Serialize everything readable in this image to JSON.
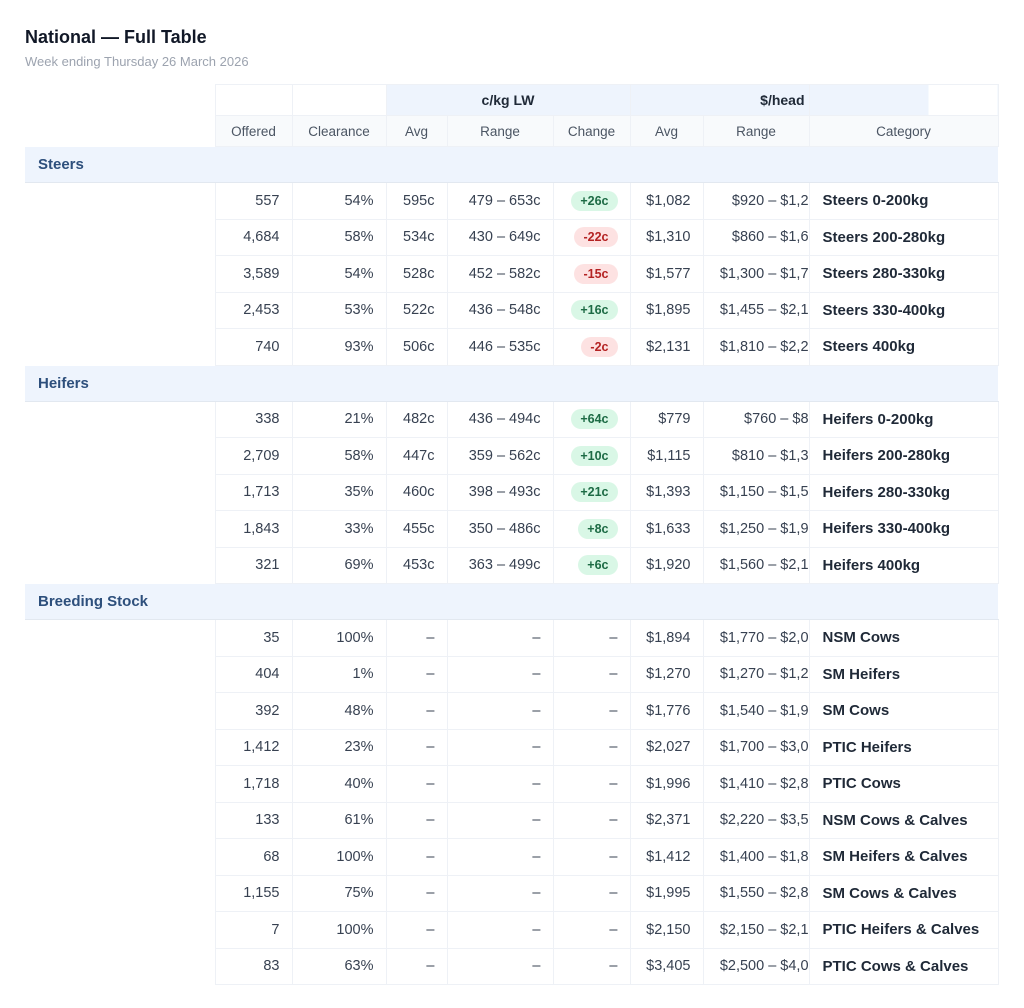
{
  "title": "National — Full Table",
  "subtitle": "Week ending Thursday 26 March 2026",
  "header": {
    "group_ckg": "c/kg LW",
    "group_head": "$/head",
    "cols": [
      "Offered",
      "Clearance",
      "Avg",
      "Range",
      "Change",
      "Avg",
      "Range",
      "Category"
    ]
  },
  "colors": {
    "up_bg": "#d9f7e6",
    "up_fg": "#1d6b45",
    "down_bg": "#fde2e2",
    "down_fg": "#b42323",
    "group_bg": "#eef4fd"
  },
  "groups": [
    {
      "name": "Steers",
      "rows": [
        [
          "557",
          "54%",
          "595c",
          "479 – 653c",
          "+26c",
          "$1,082",
          "$920 – $1,2",
          "Steers 0-200kg"
        ],
        [
          "4,684",
          "58%",
          "534c",
          "430 – 649c",
          "-22c",
          "$1,310",
          "$860 – $1,6",
          "Steers 200-280kg"
        ],
        [
          "3,589",
          "54%",
          "528c",
          "452 – 582c",
          "-15c",
          "$1,577",
          "$1,300 – $1,7",
          "Steers 280-330kg"
        ],
        [
          "2,453",
          "53%",
          "522c",
          "436 – 548c",
          "+16c",
          "$1,895",
          "$1,455 – $2,1",
          "Steers 330-400kg"
        ],
        [
          "740",
          "93%",
          "506c",
          "446 – 535c",
          "-2c",
          "$2,131",
          "$1,810 – $2,2",
          "Steers 400kg"
        ]
      ]
    },
    {
      "name": "Heifers",
      "rows": [
        [
          "338",
          "21%",
          "482c",
          "436 – 494c",
          "+64c",
          "$779",
          "$760 – $8",
          "Heifers 0-200kg"
        ],
        [
          "2,709",
          "58%",
          "447c",
          "359 – 562c",
          "+10c",
          "$1,115",
          "$810 – $1,3",
          "Heifers 200-280kg"
        ],
        [
          "1,713",
          "35%",
          "460c",
          "398 – 493c",
          "+21c",
          "$1,393",
          "$1,150 – $1,5",
          "Heifers 280-330kg"
        ],
        [
          "1,843",
          "33%",
          "455c",
          "350 – 486c",
          "+8c",
          "$1,633",
          "$1,250 – $1,9",
          "Heifers 330-400kg"
        ],
        [
          "321",
          "69%",
          "453c",
          "363 – 499c",
          "+6c",
          "$1,920",
          "$1,560 – $2,1",
          "Heifers 400kg"
        ]
      ]
    },
    {
      "name": "Breeding Stock",
      "rows": [
        [
          "35",
          "100%",
          "–",
          "–",
          "–",
          "$1,894",
          "$1,770 – $2,0",
          "NSM Cows"
        ],
        [
          "404",
          "1%",
          "–",
          "–",
          "–",
          "$1,270",
          "$1,270 – $1,2",
          "SM Heifers"
        ],
        [
          "392",
          "48%",
          "–",
          "–",
          "–",
          "$1,776",
          "$1,540 – $1,9",
          "SM Cows"
        ],
        [
          "1,412",
          "23%",
          "–",
          "–",
          "–",
          "$2,027",
          "$1,700 – $3,0",
          "PTIC Heifers"
        ],
        [
          "1,718",
          "40%",
          "–",
          "–",
          "–",
          "$1,996",
          "$1,410 – $2,8",
          "PTIC Cows"
        ],
        [
          "133",
          "61%",
          "–",
          "–",
          "–",
          "$2,371",
          "$2,220 – $3,5",
          "NSM Cows & Calves"
        ],
        [
          "68",
          "100%",
          "–",
          "–",
          "–",
          "$1,412",
          "$1,400 – $1,8",
          "SM Heifers & Calves"
        ],
        [
          "1,155",
          "75%",
          "–",
          "–",
          "–",
          "$1,995",
          "$1,550 – $2,8",
          "SM Cows & Calves"
        ],
        [
          "7",
          "100%",
          "–",
          "–",
          "–",
          "$2,150",
          "$2,150 – $2,1",
          "PTIC Heifers & Calves"
        ],
        [
          "83",
          "63%",
          "–",
          "–",
          "–",
          "$3,405",
          "$2,500 – $4,0",
          "PTIC Cows & Calves"
        ]
      ]
    }
  ]
}
